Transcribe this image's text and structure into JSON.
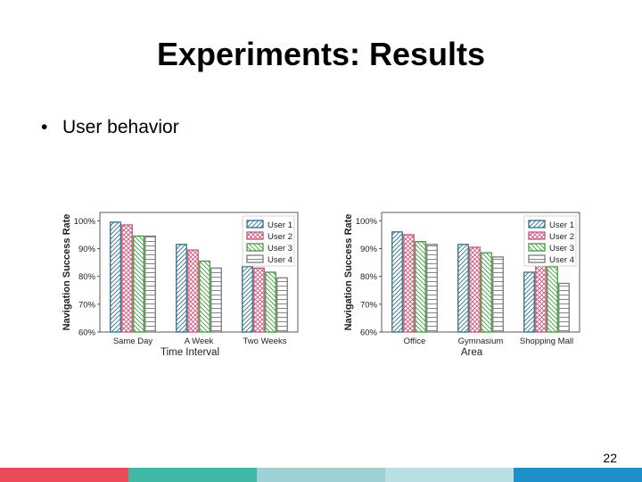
{
  "slide": {
    "title": "Experiments: Results",
    "bullet": "User behavior",
    "page_number": "22",
    "footer_colors": [
      "#e94b5b",
      "#40b8a6",
      "#9fd1d4",
      "#b9dfe3",
      "#1f8fc9"
    ]
  },
  "series_style": [
    {
      "color": "#2e6f8a",
      "pattern": "diag"
    },
    {
      "color": "#c8567a",
      "pattern": "cross"
    },
    {
      "color": "#3f9a3c",
      "pattern": "back"
    },
    {
      "color": "#7a7a7a",
      "pattern": "horiz"
    }
  ],
  "chart_data": [
    {
      "type": "bar",
      "categories": [
        "Same Day",
        "A Week",
        "Two Weeks"
      ],
      "series": [
        {
          "name": "User 1",
          "values": [
            99.5,
            91.5,
            83.5
          ]
        },
        {
          "name": "User 2",
          "values": [
            98.5,
            89.5,
            83
          ]
        },
        {
          "name": "User 3",
          "values": [
            94.5,
            85.5,
            81.5
          ]
        },
        {
          "name": "User 4",
          "values": [
            94.5,
            83,
            79.5
          ]
        }
      ],
      "xlabel": "Time Interval",
      "ylabel": "Navigation Success Rate",
      "ylim": [
        60,
        103
      ],
      "yticks": [
        60,
        70,
        80,
        90,
        100
      ],
      "ytick_labels": [
        "60%",
        "70%",
        "80%",
        "90%",
        "100%"
      ],
      "grid": false,
      "legend_position": "top-right"
    },
    {
      "type": "bar",
      "categories": [
        "Office",
        "Gymnasium",
        "Shopping Mall"
      ],
      "series": [
        {
          "name": "User 1",
          "values": [
            96,
            91.5,
            81.5
          ]
        },
        {
          "name": "User 2",
          "values": [
            95,
            90.5,
            84
          ]
        },
        {
          "name": "User 3",
          "values": [
            92.5,
            88.5,
            83.5
          ]
        },
        {
          "name": "User 4",
          "values": [
            91.5,
            87,
            77.5
          ]
        }
      ],
      "xlabel": "Area",
      "ylabel": "Navigation Success Rate",
      "ylim": [
        60,
        103
      ],
      "yticks": [
        60,
        70,
        80,
        90,
        100
      ],
      "ytick_labels": [
        "60%",
        "70%",
        "80%",
        "90%",
        "100%"
      ],
      "grid": false,
      "legend_position": "top-right"
    }
  ]
}
